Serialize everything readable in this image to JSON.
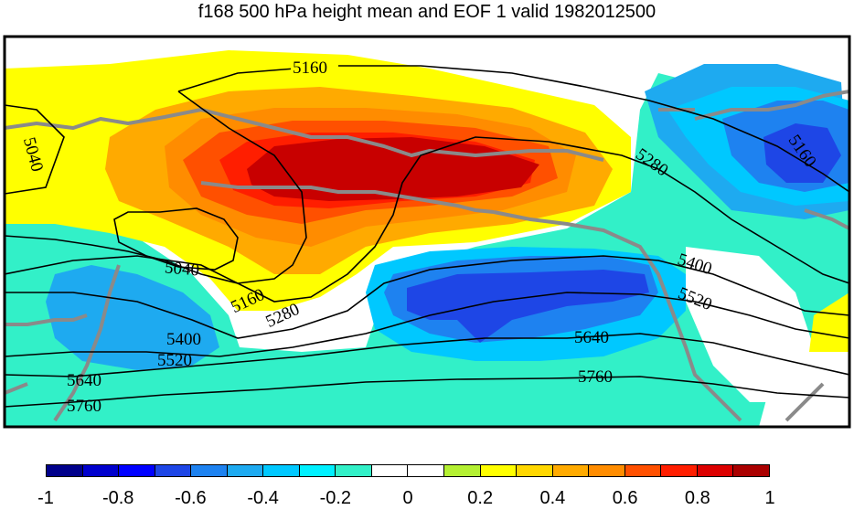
{
  "title": "f168 500 hPa height mean and EOF 1 valid 1982012500",
  "contour_labels": {
    "c5160_top": "5160",
    "c5040_left": "5040",
    "c5280_right": "5280",
    "c5160_right": "5160",
    "c5040_mid": "5040",
    "c5160_mid": "5160",
    "c5280_mid": "5280",
    "c5400_right": "5400",
    "c5520_right": "5520",
    "c5400_left": "5400",
    "c5520_left": "5520",
    "c5640_right": "5640",
    "c5640_left": "5640",
    "c5760_right": "5760",
    "c5760_left": "5760"
  },
  "colorbar": {
    "colors": [
      "#00008b",
      "#0000cd",
      "#0000ff",
      "#1e46e6",
      "#1e82f0",
      "#1eaaf0",
      "#00c8ff",
      "#00f0ff",
      "#32f0c8",
      "#ffffff",
      "#ffffff",
      "#b4f032",
      "#ffff00",
      "#ffd700",
      "#ffaa00",
      "#ff8c00",
      "#ff5000",
      "#ff1e00",
      "#dc0000",
      "#aa0000"
    ],
    "tick_labels": [
      "-1",
      "-0.8",
      "-0.6",
      "-0.4",
      "-0.2",
      "0",
      "0.2",
      "0.4",
      "0.6",
      "0.8",
      "1"
    ]
  },
  "colors": {
    "coast": "#8a8a8a",
    "contour": "#000000"
  }
}
